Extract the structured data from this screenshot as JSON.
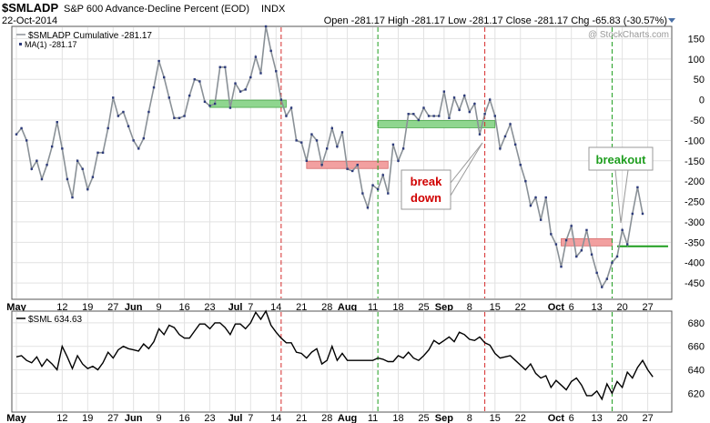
{
  "header": {
    "symbol": "$SMLADP",
    "description": "S&P 600 Advance-Decline Percent (EOD)",
    "exchange": "INDX",
    "date": "22-Oct-2014",
    "ohlc": "Open -281.17  High -281.17  Low -281.17  Close -281.17  Chg -65.83 (-30.57%)",
    "watermark": "@ StockCharts.com"
  },
  "top_legend": {
    "line1": "$SMLADP Cumulative -281.17",
    "line2": "MA(1) -281.17"
  },
  "bottom_legend": "$SML 634.63",
  "annotations": {
    "breakdown_1": "break",
    "breakdown_2": "down",
    "breakout": "breakout"
  },
  "x_labels": [
    {
      "i": 0,
      "t": "May",
      "b": true
    },
    {
      "i": 9,
      "t": "12"
    },
    {
      "i": 14,
      "t": "19"
    },
    {
      "i": 19,
      "t": "27"
    },
    {
      "i": 23,
      "t": "Jun",
      "b": true
    },
    {
      "i": 28,
      "t": "9"
    },
    {
      "i": 33,
      "t": "16"
    },
    {
      "i": 38,
      "t": "23"
    },
    {
      "i": 43,
      "t": "Jul",
      "b": true
    },
    {
      "i": 46,
      "t": "7"
    },
    {
      "i": 51,
      "t": "14"
    },
    {
      "i": 56,
      "t": "21"
    },
    {
      "i": 61,
      "t": "28"
    },
    {
      "i": 65,
      "t": "Aug",
      "b": true
    },
    {
      "i": 70,
      "t": "11"
    },
    {
      "i": 75,
      "t": "18"
    },
    {
      "i": 80,
      "t": "25"
    },
    {
      "i": 84,
      "t": "Sep",
      "b": true
    },
    {
      "i": 89,
      "t": "8"
    },
    {
      "i": 94,
      "t": "15"
    },
    {
      "i": 99,
      "t": "22"
    },
    {
      "i": 106,
      "t": "Oct",
      "b": true
    },
    {
      "i": 109,
      "t": "6"
    },
    {
      "i": 114,
      "t": "13"
    },
    {
      "i": 119,
      "t": "20"
    },
    {
      "i": 124,
      "t": "27"
    }
  ],
  "colors": {
    "line": "#8a9197",
    "dots": "#2c3a7a",
    "sml_line": "#000000",
    "grid": "#e2e2e2",
    "red_vline": "#d62b2b",
    "green_vline": "#1f9e1f",
    "green_box": "#8fd68f",
    "red_box": "#f2a0a0",
    "green_level": "#1f9e1f",
    "breakdown_text": "#d00000",
    "breakout_text": "#1f9e1f"
  },
  "chart_data": [
    {
      "type": "line",
      "name": "$SMLADP Cumulative",
      "ylim": [
        -490,
        180
      ],
      "yticks": [
        150,
        100,
        50,
        0,
        -50,
        -100,
        -150,
        -200,
        -250,
        -300,
        -350,
        -400,
        -450
      ],
      "values": [
        -85,
        -70,
        -100,
        -170,
        -150,
        -195,
        -160,
        -115,
        -55,
        -120,
        -195,
        -240,
        -150,
        -170,
        -220,
        -190,
        -130,
        -130,
        -70,
        5,
        -40,
        -30,
        -65,
        -100,
        -120,
        -95,
        -30,
        30,
        95,
        55,
        5,
        -45,
        -45,
        -40,
        10,
        50,
        45,
        -5,
        -15,
        -10,
        80,
        80,
        -20,
        40,
        20,
        25,
        55,
        105,
        65,
        180,
        120,
        70,
        0,
        -40,
        -20,
        -100,
        -105,
        -150,
        -85,
        -100,
        -160,
        -120,
        -70,
        -115,
        -80,
        -170,
        -175,
        -160,
        -230,
        -265,
        -210,
        -220,
        -185,
        -230,
        -110,
        -150,
        -120,
        -35,
        -35,
        -50,
        -20,
        -40,
        -40,
        -40,
        20,
        -45,
        5,
        -25,
        10,
        -30,
        -10,
        -85,
        -35,
        0,
        -40,
        -120,
        -90,
        -60,
        -110,
        -160,
        -200,
        -260,
        -240,
        -295,
        -240,
        -330,
        -355,
        -410,
        -345,
        -310,
        -385,
        -370,
        -320,
        -380,
        -425,
        -460,
        -440,
        -400,
        -385,
        -320,
        -355,
        -280,
        -215,
        -280
      ],
      "ma_line": {
        "name": "MA(1)",
        "values": "same as series"
      },
      "levels": [
        {
          "color": "green",
          "y": -10,
          "x_from": 38,
          "x_to": 53
        },
        {
          "color": "red",
          "y": -160,
          "x_from": 57,
          "x_to": 73
        },
        {
          "color": "green",
          "y": -60,
          "x_from": 71,
          "x_to": 94
        },
        {
          "color": "red",
          "y": -350,
          "x_from": 107,
          "x_to": 117
        },
        {
          "color": "green_line",
          "y": -360,
          "x_from": 118,
          "x_to": 128
        }
      ],
      "vlines": [
        {
          "x": 52,
          "color": "red"
        },
        {
          "x": 71,
          "color": "green"
        },
        {
          "x": 92,
          "color": "red"
        },
        {
          "x": 117,
          "color": "green"
        }
      ],
      "grid": true
    },
    {
      "type": "line",
      "name": "$SML",
      "ylim": [
        604,
        690
      ],
      "yticks": [
        680,
        660,
        640,
        620
      ],
      "values": [
        651,
        652,
        648,
        646,
        651,
        643,
        649,
        645,
        640,
        660,
        651,
        641,
        652,
        645,
        641,
        643,
        640,
        646,
        655,
        650,
        657,
        660,
        658,
        657,
        656,
        662,
        658,
        664,
        675,
        670,
        678,
        676,
        670,
        667,
        667,
        673,
        679,
        679,
        675,
        680,
        680,
        676,
        670,
        679,
        679,
        675,
        680,
        689,
        683,
        690,
        678,
        672,
        667,
        663,
        663,
        655,
        654,
        650,
        655,
        658,
        645,
        648,
        660,
        648,
        654,
        648,
        648,
        648,
        648,
        648,
        648,
        650,
        649,
        647,
        647,
        652,
        650,
        655,
        650,
        648,
        652,
        657,
        665,
        662,
        665,
        668,
        664,
        672,
        670,
        666,
        665,
        668,
        663,
        661,
        654,
        650,
        651,
        652,
        648,
        644,
        640,
        645,
        637,
        633,
        635,
        625,
        631,
        627,
        623,
        630,
        633,
        627,
        618,
        618,
        622,
        615,
        628,
        620,
        630,
        625,
        638,
        633,
        642,
        648,
        640,
        634
      ]
    }
  ]
}
